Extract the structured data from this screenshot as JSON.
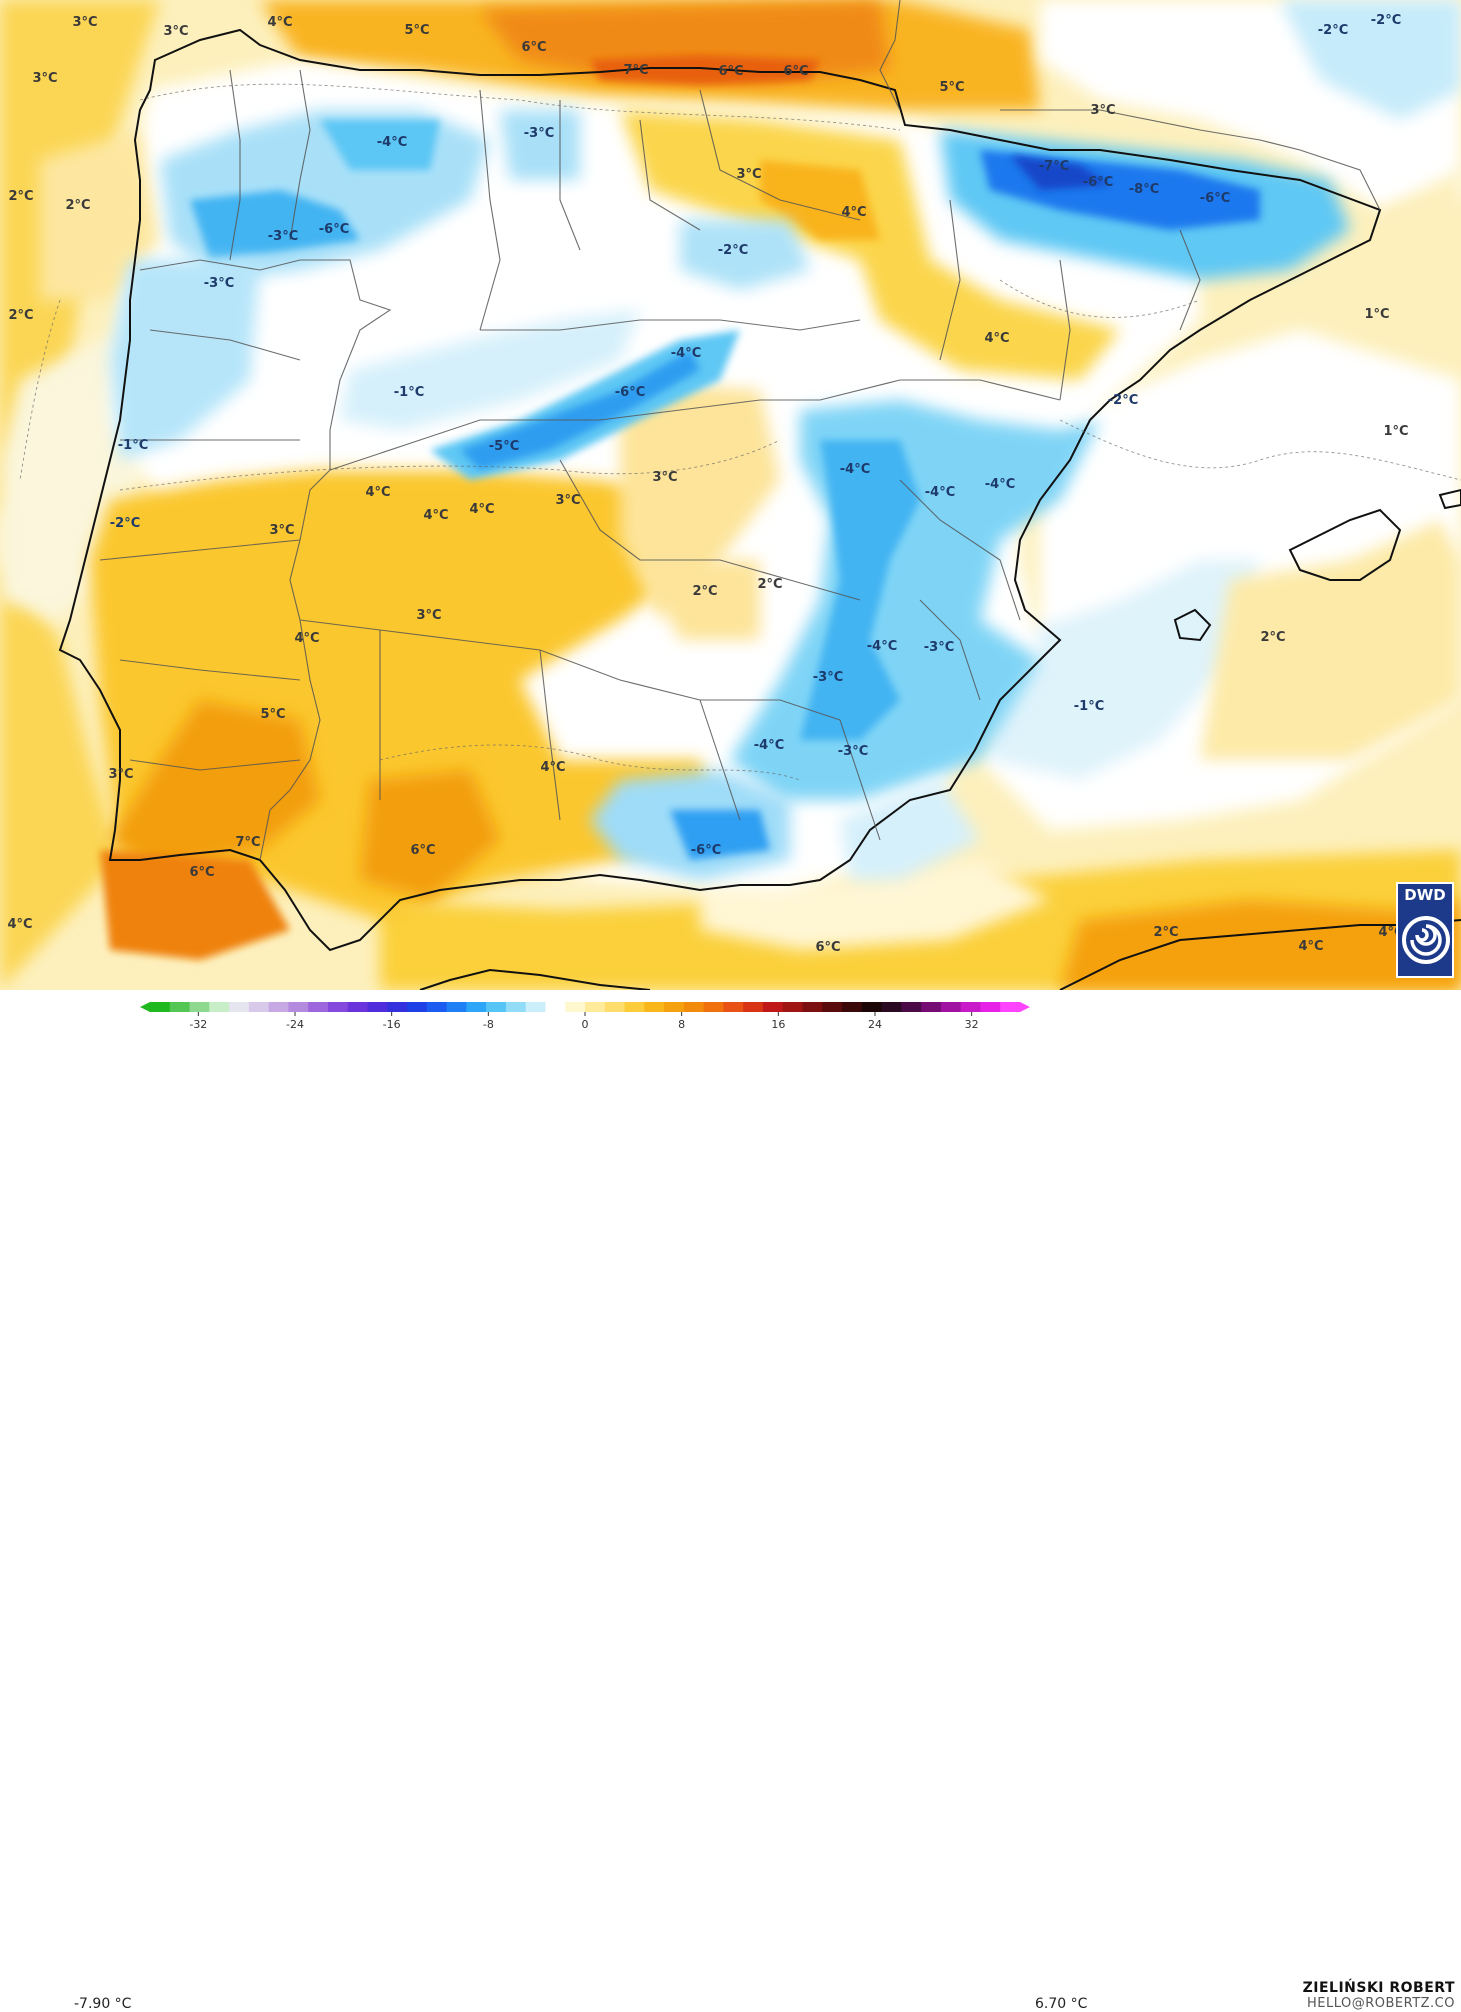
{
  "map_labels": [
    {
      "text": "3°C",
      "c": "w"
    },
    {
      "text": "3°C",
      "c": "w"
    },
    {
      "text": "4°C",
      "c": "w"
    },
    {
      "text": "5°C",
      "c": "w"
    },
    {
      "text": "6°C",
      "c": "w"
    },
    {
      "text": "7°C",
      "c": "w"
    },
    {
      "text": "6°C",
      "c": "w"
    },
    {
      "text": "6°C",
      "c": "w"
    },
    {
      "text": "5°C",
      "c": "w"
    },
    {
      "text": "3°C",
      "c": "w"
    },
    {
      "text": "3°C",
      "c": "w"
    },
    {
      "text": "-2°C",
      "c": "c"
    },
    {
      "text": "-2°C",
      "c": "c"
    },
    {
      "text": "-4°C",
      "c": "c"
    },
    {
      "text": "-3°C",
      "c": "c"
    },
    {
      "text": "3°C",
      "c": "w"
    },
    {
      "text": "-7°C",
      "c": "c"
    },
    {
      "text": "-6°C",
      "c": "c"
    },
    {
      "text": "-8°C",
      "c": "c"
    },
    {
      "text": "-6°C",
      "c": "c"
    },
    {
      "text": "2°C",
      "c": "w"
    },
    {
      "text": "2°C",
      "c": "w"
    },
    {
      "text": "-3°C",
      "c": "c"
    },
    {
      "text": "-6°C",
      "c": "c"
    },
    {
      "text": "4°C",
      "c": "w"
    },
    {
      "text": "-2°C",
      "c": "c"
    },
    {
      "text": "-3°C",
      "c": "c"
    },
    {
      "text": "2°C",
      "c": "w"
    },
    {
      "text": "1°C",
      "c": "w"
    },
    {
      "text": "4°C",
      "c": "w"
    },
    {
      "text": "-4°C",
      "c": "c"
    },
    {
      "text": "-1°C",
      "c": "c"
    },
    {
      "text": "-6°C",
      "c": "c"
    },
    {
      "text": "-2°C",
      "c": "c"
    },
    {
      "text": "1°C",
      "c": "w"
    },
    {
      "text": "-1°C",
      "c": "c"
    },
    {
      "text": "-5°C",
      "c": "c"
    },
    {
      "text": "-4°C",
      "c": "c"
    },
    {
      "text": "-4°C",
      "c": "c"
    },
    {
      "text": "-4°C",
      "c": "c"
    },
    {
      "text": "4°C",
      "c": "w"
    },
    {
      "text": "3°C",
      "c": "w"
    },
    {
      "text": "4°C",
      "c": "w"
    },
    {
      "text": "4°C",
      "c": "w"
    },
    {
      "text": "3°C",
      "c": "w"
    },
    {
      "text": "-2°C",
      "c": "c"
    },
    {
      "text": "3°C",
      "c": "w"
    },
    {
      "text": "2°C",
      "c": "w"
    },
    {
      "text": "2°C",
      "c": "w"
    },
    {
      "text": "3°C",
      "c": "w"
    },
    {
      "text": "4°C",
      "c": "w"
    },
    {
      "text": "2°C",
      "c": "w"
    },
    {
      "text": "-3°C",
      "c": "c"
    },
    {
      "text": "-4°C",
      "c": "c"
    },
    {
      "text": "-3°C",
      "c": "c"
    },
    {
      "text": "5°C",
      "c": "w"
    },
    {
      "text": "-1°C",
      "c": "c"
    },
    {
      "text": "-4°C",
      "c": "c"
    },
    {
      "text": "-3°C",
      "c": "c"
    },
    {
      "text": "3°C",
      "c": "w"
    },
    {
      "text": "4°C",
      "c": "w"
    },
    {
      "text": "7°C",
      "c": "w"
    },
    {
      "text": "6°C",
      "c": "w"
    },
    {
      "text": "6°C",
      "c": "w"
    },
    {
      "text": "-6°C",
      "c": "c"
    },
    {
      "text": "4°C",
      "c": "w"
    },
    {
      "text": "2°C",
      "c": "w"
    },
    {
      "text": "6°C",
      "c": "w"
    },
    {
      "text": "4°C",
      "c": "w"
    },
    {
      "text": "4°C",
      "c": "w"
    }
  ],
  "legend": {
    "min_label": "-7.90 °C",
    "max_label": "6.70 °C",
    "ticks": [
      "-32",
      "-24",
      "-16",
      "-8",
      "0",
      "8",
      "16",
      "24",
      "32"
    ],
    "tick_values": [
      -32,
      -24,
      -16,
      -8,
      0,
      8,
      16,
      24,
      32
    ],
    "range": [
      -36,
      36
    ],
    "colors": [
      "#1fb81f",
      "#53c653",
      "#8fd88f",
      "#c8eec8",
      "#e5e5f0",
      "#d8c8ea",
      "#c6a8e4",
      "#b48ade",
      "#9d66dc",
      "#8448dc",
      "#6b33db",
      "#4f2ddc",
      "#3530de",
      "#1f40e6",
      "#1c5cf0",
      "#1f80f5",
      "#2ea6f7",
      "#57c4f6",
      "#93dcf8",
      "#cbeefb",
      "#ffffff",
      "#fff8cf",
      "#ffeb99",
      "#fedd6d",
      "#fdcc3a",
      "#f9b61a",
      "#f5a00e",
      "#f28a0c",
      "#ef700c",
      "#e85214",
      "#d83314",
      "#c01818",
      "#a01414",
      "#7c1010",
      "#5a0c0c",
      "#3a0808",
      "#1a0606",
      "#2a0a22",
      "#4a0a48",
      "#740c74",
      "#a012a2",
      "#c81ac8",
      "#e620e6",
      "#ff44ff"
    ]
  },
  "author": {
    "name": "ZIELIŃSKI ROBERT",
    "email": "HELLO@ROBERTZ.CO"
  },
  "logo": {
    "text": "DWD",
    "icon": "dwd-swirl-icon"
  },
  "colors": {
    "sea_warm": "#fde7a0",
    "land_warm": "#fbd03b",
    "warm_core": "#f5a00e",
    "hot_core": "#ee7a0c",
    "cold_light": "#c6ebfa",
    "cold_mid": "#5ec8f4",
    "cold_core": "#1f8ff0",
    "coldest": "#1456d8"
  }
}
